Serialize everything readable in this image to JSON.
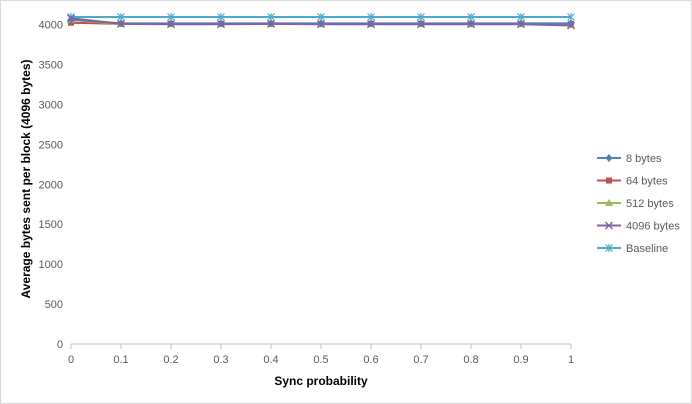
{
  "chart_data": {
    "type": "line",
    "title": "",
    "xlabel": "Sync probability",
    "ylabel": "Average bytes sent per block (4096 bytes)",
    "x": [
      0,
      0.1,
      0.2,
      0.3,
      0.4,
      0.5,
      0.6,
      0.7,
      0.8,
      0.9,
      1
    ],
    "x_tick_labels": [
      "0",
      "0.1",
      "0.2",
      "0.3",
      "0.4",
      "0.5",
      "0.6",
      "0.7",
      "0.8",
      "0.9",
      "1"
    ],
    "y_ticks": [
      0,
      500,
      1000,
      1500,
      2000,
      2500,
      3000,
      3500,
      4000
    ],
    "ylim": [
      0,
      4096
    ],
    "xlim": [
      0,
      1
    ],
    "grid": false,
    "legend_position": "right",
    "series": [
      {
        "name": "8 bytes",
        "color": "#4f81bd",
        "marker": "diamond",
        "values": [
          4066,
          4016,
          4016,
          4016,
          4016,
          4016,
          4016,
          4016,
          4016,
          4016,
          4016
        ]
      },
      {
        "name": "64 bytes",
        "color": "#c0504d",
        "marker": "square",
        "values": [
          4024,
          4010,
          4010,
          4010,
          4010,
          4010,
          4010,
          4010,
          4010,
          4010,
          4010
        ]
      },
      {
        "name": "512 bytes",
        "color": "#9bbb59",
        "marker": "triangle",
        "values": [
          4060,
          4008,
          4008,
          4008,
          4008,
          4008,
          4008,
          4008,
          4008,
          4008,
          3998
        ]
      },
      {
        "name": "4096 bytes",
        "color": "#8064a2",
        "marker": "x",
        "values": [
          4080,
          4010,
          4005,
          4005,
          4010,
          4005,
          4005,
          4005,
          4005,
          4005,
          3990
        ]
      },
      {
        "name": "Baseline",
        "color": "#4bacc6",
        "marker": "star",
        "values": [
          4096,
          4096,
          4096,
          4096,
          4096,
          4096,
          4096,
          4096,
          4096,
          4096,
          4096
        ]
      }
    ]
  }
}
